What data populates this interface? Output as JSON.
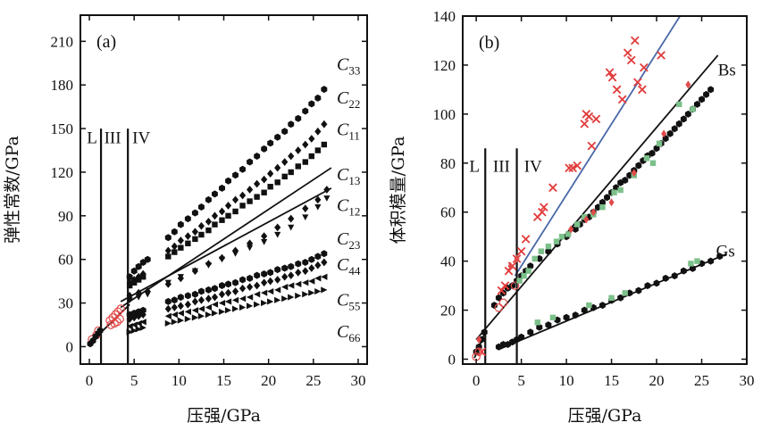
{
  "chart_data": [
    {
      "type": "scatter",
      "panel_label": "(a)",
      "xlabel": "压强/GPa",
      "ylabel": "弹性常数/GPa",
      "xlim": [
        -1,
        31
      ],
      "ylim": [
        -12,
        228
      ],
      "xticks": [
        0,
        5,
        10,
        15,
        20,
        25,
        30
      ],
      "yticks": [
        0,
        30,
        60,
        90,
        120,
        150,
        180,
        210
      ],
      "phase_boundaries": [
        1.3,
        4.3
      ],
      "phase_labels": [
        {
          "text": "L",
          "x": 0.3
        },
        {
          "text": "III",
          "x": 2.6
        },
        {
          "text": "IV",
          "x": 5.8
        }
      ],
      "series": [
        {
          "name": "C33",
          "base": "C",
          "sub": "33",
          "marker": "hexagon",
          "x": [
            4.5,
            5.0,
            5.5,
            6.0,
            6.5,
            8.8,
            9.5,
            10.2,
            11.0,
            11.8,
            12.5,
            13.3,
            14.0,
            14.8,
            15.5,
            16.3,
            17.1,
            17.9,
            18.7,
            19.5,
            20.2,
            21.0,
            21.8,
            22.5,
            23.3,
            24.1,
            24.8,
            25.5,
            26.2
          ],
          "y": [
            48,
            52,
            55,
            58,
            60,
            75,
            79,
            84,
            88,
            92,
            96,
            101,
            105,
            109,
            114,
            118,
            122,
            127,
            131,
            136,
            140,
            144,
            148,
            153,
            157,
            162,
            167,
            171,
            177
          ],
          "label_y": 194
        },
        {
          "name": "C22",
          "base": "C",
          "sub": "22",
          "marker": "diamond",
          "x": [
            4.5,
            5.0,
            5.5,
            6.0,
            8.8,
            9.5,
            10.2,
            11.0,
            11.8,
            12.5,
            13.3,
            14.0,
            14.8,
            15.5,
            16.3,
            17.1,
            17.9,
            18.7,
            19.5,
            20.2,
            21.0,
            21.8,
            22.5,
            23.3,
            24.1,
            24.8,
            25.5,
            26.2
          ],
          "y": [
            44,
            46,
            48,
            50,
            66,
            69,
            73,
            76,
            79,
            83,
            86,
            90,
            93,
            97,
            101,
            104,
            108,
            112,
            115,
            119,
            123,
            127,
            131,
            135,
            139,
            143,
            148,
            153
          ],
          "label_y": 171
        },
        {
          "name": "C11",
          "base": "C",
          "sub": "11",
          "marker": "square",
          "x": [
            4.5,
            5.0,
            5.5,
            6.0,
            8.8,
            9.5,
            10.2,
            11.0,
            11.8,
            12.5,
            13.3,
            14.0,
            14.8,
            15.5,
            16.3,
            17.1,
            17.9,
            18.7,
            19.5,
            20.2,
            21.0,
            21.8,
            22.5,
            23.3,
            24.1,
            24.8,
            25.5,
            26.2
          ],
          "y": [
            42,
            44,
            46,
            48,
            62,
            65,
            68,
            71,
            74,
            77,
            80,
            84,
            87,
            90,
            93,
            97,
            100,
            103,
            106,
            110,
            113,
            117,
            120,
            124,
            127,
            131,
            135,
            139
          ],
          "label_y": 149
        },
        {
          "name": "C13",
          "base": "C",
          "sub": "13",
          "marker": "diamond",
          "x": [
            4.5,
            5.5,
            6.5,
            8.8,
            10.2,
            11.8,
            13.3,
            14.8,
            16.3,
            17.9,
            19.5,
            21.0,
            22.5,
            24.1,
            25.5,
            26.5
          ],
          "y": [
            35,
            37,
            38,
            43,
            47,
            52,
            57,
            61,
            66,
            71,
            76,
            82,
            88,
            95,
            101,
            108
          ],
          "label_y": 118
        },
        {
          "name": "C12",
          "base": "C",
          "sub": "12",
          "marker": "triangle-down",
          "x": [
            4.5,
            5.5,
            6.5,
            8.8,
            10.2,
            11.8,
            13.3,
            14.8,
            16.3,
            17.9,
            19.5,
            21.0,
            22.5,
            24.1,
            25.5,
            26.5
          ],
          "y": [
            32,
            34,
            36,
            44,
            48,
            52,
            56,
            60,
            64,
            68,
            72,
            77,
            82,
            89,
            96,
            102
          ],
          "label_y": 97
        },
        {
          "name": "C23",
          "base": "C",
          "sub": "23",
          "marker": "hexagon",
          "x": [
            4.5,
            5.0,
            5.5,
            6.0,
            8.8,
            9.5,
            10.2,
            11.0,
            11.8,
            12.5,
            13.3,
            14.0,
            14.8,
            15.5,
            16.3,
            17.1,
            17.9,
            18.7,
            19.5,
            20.2,
            21.0,
            21.8,
            22.5,
            23.3,
            24.1,
            24.8,
            25.5,
            26.2
          ],
          "y": [
            22,
            23,
            24,
            25,
            31,
            32,
            34,
            35,
            36,
            38,
            39,
            40,
            42,
            43,
            44,
            46,
            47,
            49,
            50,
            51,
            53,
            54,
            55,
            57,
            58,
            60,
            62,
            64
          ],
          "label_y": 74
        },
        {
          "name": "C44",
          "base": "C",
          "sub": "44",
          "marker": "diamond",
          "x": [
            4.5,
            5.0,
            5.5,
            6.0,
            8.8,
            9.5,
            10.2,
            11.0,
            11.8,
            12.5,
            13.3,
            14.0,
            14.8,
            15.5,
            16.3,
            17.1,
            17.9,
            18.7,
            19.5,
            20.2,
            21.0,
            21.8,
            22.5,
            23.3,
            24.1,
            24.8,
            25.5,
            26.2
          ],
          "y": [
            19,
            20,
            21,
            22,
            26,
            27,
            28,
            29,
            31,
            32,
            33,
            34,
            36,
            37,
            38,
            40,
            41,
            42,
            44,
            45,
            46,
            48,
            49,
            51,
            52,
            54,
            56,
            58
          ],
          "label_y": 56
        },
        {
          "name": "C55",
          "base": "C",
          "sub": "55",
          "marker": "triangle-left",
          "x": [
            4.5,
            5.0,
            5.5,
            6.0,
            8.8,
            9.5,
            10.2,
            11.0,
            11.8,
            12.5,
            13.3,
            14.0,
            14.8,
            15.5,
            16.3,
            17.1,
            17.9,
            18.7,
            19.5,
            20.2,
            21.0,
            21.8,
            22.5,
            23.3,
            24.1,
            24.8,
            25.5,
            26.2
          ],
          "y": [
            14,
            15,
            16,
            17,
            21,
            22,
            23,
            24,
            25,
            26,
            27,
            29,
            30,
            31,
            32,
            33,
            34,
            36,
            37,
            38,
            39,
            41,
            42,
            43,
            44,
            45,
            47,
            48
          ],
          "label_y": 32
        },
        {
          "name": "C66",
          "base": "C",
          "sub": "66",
          "marker": "triangle-right",
          "x": [
            4.5,
            5.0,
            5.5,
            6.0,
            8.8,
            9.5,
            10.2,
            11.0,
            11.8,
            12.5,
            13.3,
            14.0,
            14.8,
            15.5,
            16.3,
            17.1,
            17.9,
            18.7,
            19.5,
            20.2,
            21.0,
            21.8,
            22.5,
            23.3,
            24.1,
            24.8,
            25.5,
            26.2
          ],
          "y": [
            10,
            11,
            12,
            13,
            16,
            17,
            18,
            19,
            20,
            21,
            22,
            23,
            24,
            25,
            26,
            27,
            28,
            29,
            30,
            31,
            32,
            33,
            34,
            35,
            36,
            37,
            38,
            39
          ],
          "label_y": 10
        },
        {
          "name": "low-pressure open",
          "marker": "circle-open-red",
          "x": [
            0.3,
            0.8,
            1.0,
            2.3,
            2.6,
            2.9,
            3.2,
            3.5,
            2.4,
            2.8,
            3.1,
            3.4
          ],
          "y": [
            5,
            8,
            11,
            18,
            20,
            22,
            24,
            26,
            15,
            16,
            17,
            19
          ]
        },
        {
          "name": "low-pressure black",
          "marker": "hexagon",
          "x": [
            0.1,
            0.4,
            0.7,
            1.0,
            1.2
          ],
          "y": [
            2,
            4,
            7,
            9,
            11
          ]
        }
      ],
      "fit_lines": [
        {
          "name": "C13 fit",
          "x": [
            3.5,
            27.0
          ],
          "y": [
            27.0,
            123.0
          ]
        },
        {
          "name": "C12 fit",
          "x": [
            3.5,
            27.0
          ],
          "y": [
            31.0,
            109.0
          ]
        },
        {
          "name": "low fit",
          "x": [
            0.0,
            4.5
          ],
          "y": [
            2.0,
            29.0
          ]
        }
      ]
    },
    {
      "type": "scatter",
      "panel_label": "(b)",
      "xlabel": "压强/GPa",
      "ylabel": "体积模量/GPa",
      "xlim": [
        -1.5,
        30
      ],
      "ylim": [
        -2,
        140
      ],
      "xticks": [
        0,
        5,
        10,
        15,
        20,
        25,
        30
      ],
      "yticks": [
        0,
        20,
        40,
        60,
        80,
        100,
        120,
        140
      ],
      "phase_boundaries": [
        1.0,
        4.5
      ],
      "phase_labels": [
        {
          "text": "L",
          "x": -0.2
        },
        {
          "text": "III",
          "x": 2.8
        },
        {
          "text": "IV",
          "x": 6.3
        }
      ],
      "series": [
        {
          "name": "Bs",
          "marker": "hexagon",
          "label": "Bs",
          "label_pos": [
            26.8,
            118
          ],
          "x": [
            0.0,
            0.3,
            0.6,
            0.9,
            2.0,
            2.5,
            3.0,
            3.5,
            4.0,
            4.5,
            5.0,
            5.5,
            6.0,
            7.0,
            8.0,
            9.0,
            10.0,
            11.0,
            11.5,
            12.0,
            12.5,
            13.0,
            13.5,
            14.0,
            14.5,
            15.0,
            15.5,
            16.0,
            16.5,
            17.0,
            17.5,
            18.0,
            18.5,
            19.0,
            19.5,
            20.0,
            20.5,
            21.0,
            21.5,
            22.0,
            22.5,
            23.0,
            23.5,
            24.0,
            24.5,
            25.0,
            25.5,
            26.0
          ],
          "y": [
            3,
            5,
            8,
            11,
            22,
            25,
            27,
            29,
            30,
            32,
            34,
            36,
            38,
            41,
            44,
            47,
            50,
            53,
            55,
            57,
            58,
            60,
            62,
            64,
            66,
            68,
            70,
            72,
            73,
            75,
            77,
            79,
            81,
            83,
            84,
            86,
            88,
            90,
            92,
            94,
            96,
            98,
            100,
            102,
            104,
            106,
            108,
            110
          ]
        },
        {
          "name": "Gs",
          "marker": "hexagon",
          "label": "Gs",
          "label_pos": [
            26.6,
            44
          ],
          "x": [
            2.5,
            3.0,
            3.5,
            4.0,
            4.5,
            5.0,
            6.0,
            7.0,
            8.0,
            9.0,
            10.0,
            11.0,
            12.0,
            13.0,
            14.0,
            15.0,
            16.0,
            17.0,
            18.0,
            19.0,
            20.0,
            21.0,
            22.0,
            23.0,
            24.0,
            25.0,
            26.0,
            27.0
          ],
          "y": [
            5,
            6,
            6,
            7,
            8,
            9,
            11,
            13,
            14,
            16,
            17,
            18,
            20,
            21,
            22,
            24,
            25,
            27,
            28,
            30,
            31,
            33,
            34,
            36,
            37,
            39,
            40,
            42
          ]
        },
        {
          "name": "red x",
          "marker": "x-red",
          "x": [
            0.6,
            2.8,
            3.2,
            3.6,
            4.0,
            4.5,
            5.0,
            5.5,
            6.8,
            7.3,
            7.5,
            8.5,
            10.3,
            10.7,
            11.2,
            12.0,
            12.2,
            12.5,
            12.8,
            13.3,
            14.8,
            15.1,
            15.6,
            16.2,
            16.8,
            17.2,
            17.6,
            17.9,
            18.4,
            18.6,
            20.5
          ],
          "y": [
            3,
            28,
            30,
            36,
            38,
            41,
            44,
            49,
            58,
            60,
            62,
            70,
            78,
            78,
            79,
            96,
            100,
            99,
            87,
            98,
            117,
            115,
            110,
            106,
            125,
            122,
            130,
            113,
            110,
            119,
            124
          ]
        },
        {
          "name": "red open circles",
          "marker": "circle-open-red",
          "x": [
            0.0,
            0.3,
            2.5,
            3.0,
            4.3
          ],
          "y": [
            1,
            3,
            21,
            23,
            30
          ]
        },
        {
          "name": "green squares",
          "marker": "square-green",
          "x": [
            4.8,
            5.3,
            5.8,
            6.5,
            7.2,
            8.0,
            8.9,
            9.5,
            10.2,
            11.2,
            12.0,
            13.0,
            14.0,
            15.3,
            16.0,
            17.5,
            18.9,
            19.6,
            20.3,
            22.5,
            24.0,
            24.5
          ],
          "y": [
            32,
            34,
            36,
            41,
            44,
            46,
            48,
            50,
            51,
            55,
            58,
            59,
            62,
            68,
            69,
            75,
            82,
            80,
            88,
            104,
            102,
            40
          ]
        },
        {
          "name": "red diamonds",
          "marker": "diamond-red",
          "x": [
            0.3,
            3.8,
            4.5,
            10.5,
            12.2,
            13.0,
            15.0,
            17.5,
            20.8,
            23.5
          ],
          "y": [
            8,
            38,
            41,
            53,
            57,
            60,
            64,
            76,
            92,
            112
          ]
        },
        {
          "name": "green on Gs",
          "marker": "square-green",
          "x": [
            6.8,
            8.5,
            12.5,
            15.0,
            16.5,
            23.8
          ],
          "y": [
            15,
            17,
            22,
            25,
            27,
            39
          ]
        }
      ],
      "fit_lines": [
        {
          "name": "Bs fit",
          "color": "#111111",
          "x": [
            0.0,
            26.8
          ],
          "y": [
            8.0,
            124.0
          ]
        },
        {
          "name": "Gs fit",
          "color": "#111111",
          "x": [
            2.5,
            27.8
          ],
          "y": [
            4.0,
            43.0
          ]
        },
        {
          "name": "Bs low fit",
          "color": "#111111",
          "x": [
            -0.2,
            1.1
          ],
          "y": [
            0.5,
            12.0
          ]
        },
        {
          "name": "blue fit",
          "color": "#4a68a8",
          "x": [
            4.3,
            22.6
          ],
          "y": [
            34.0,
            140.0
          ]
        }
      ]
    }
  ]
}
